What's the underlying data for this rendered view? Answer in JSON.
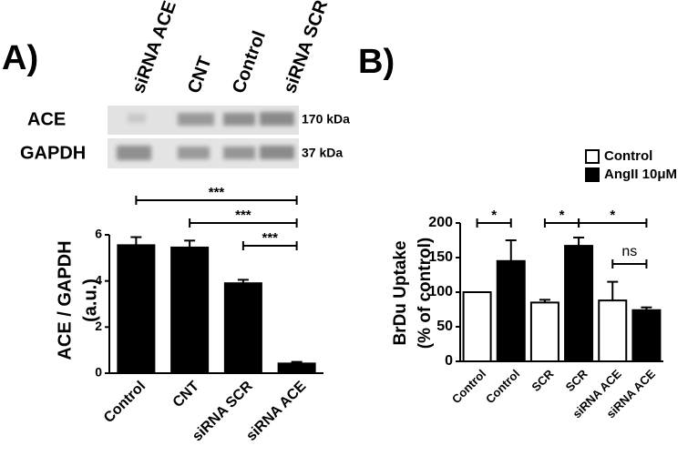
{
  "panels": [
    "A)",
    "B)"
  ],
  "blot": {
    "lanes": [
      "siRNA ACE",
      "CNT",
      "Control",
      "siRNA SCR"
    ],
    "rows": [
      {
        "label": "ACE",
        "size": "170 kDa"
      },
      {
        "label": "GAPDH",
        "size": "37 kDa"
      }
    ]
  },
  "chart_data": [
    {
      "type": "bar",
      "ylabel": [
        "ACE / GAPDH",
        "(a.u.)"
      ],
      "categories": [
        "Control",
        "CNT",
        "siRNA SCR",
        "siRNA ACE"
      ],
      "series": [
        {
          "color": "#000000",
          "values": [
            5.55,
            5.45,
            3.9,
            0.42
          ],
          "errors": [
            0.35,
            0.3,
            0.15,
            0.07
          ]
        }
      ],
      "ylim": [
        0,
        6
      ],
      "yticks": [
        0,
        2,
        4,
        6
      ],
      "brackets": [
        {
          "from": 0,
          "to": 3,
          "label": "***"
        },
        {
          "from": 1,
          "to": 3,
          "label": "***"
        },
        {
          "from": 2,
          "to": 3,
          "label": "***"
        }
      ]
    },
    {
      "type": "bar",
      "ylabel": [
        "BrDu Uptake",
        "(% of control)"
      ],
      "categories": [
        "Control",
        "Control",
        "SCR",
        "SCR",
        "siRNA ACE",
        "siRNA ACE"
      ],
      "series": [
        {
          "name": "Control",
          "color": "#ffffff",
          "values": [
            100,
            null,
            85,
            null,
            88,
            null
          ],
          "errors": [
            0,
            null,
            4,
            null,
            27,
            null
          ]
        },
        {
          "name": "AngII 10μM",
          "color": "#000000",
          "values": [
            null,
            145,
            null,
            167,
            null,
            74
          ],
          "errors": [
            null,
            30,
            null,
            12,
            null,
            4
          ]
        }
      ],
      "ylim": [
        0,
        200
      ],
      "yticks": [
        0,
        50,
        100,
        150,
        200
      ],
      "brackets": [
        {
          "from": 0,
          "to": 1,
          "label": "*"
        },
        {
          "from": 2,
          "to": 3,
          "label": "*"
        },
        {
          "from": 3,
          "to": 5,
          "label": "*"
        },
        {
          "from": 4,
          "to": 5,
          "label": "ns"
        }
      ]
    }
  ]
}
